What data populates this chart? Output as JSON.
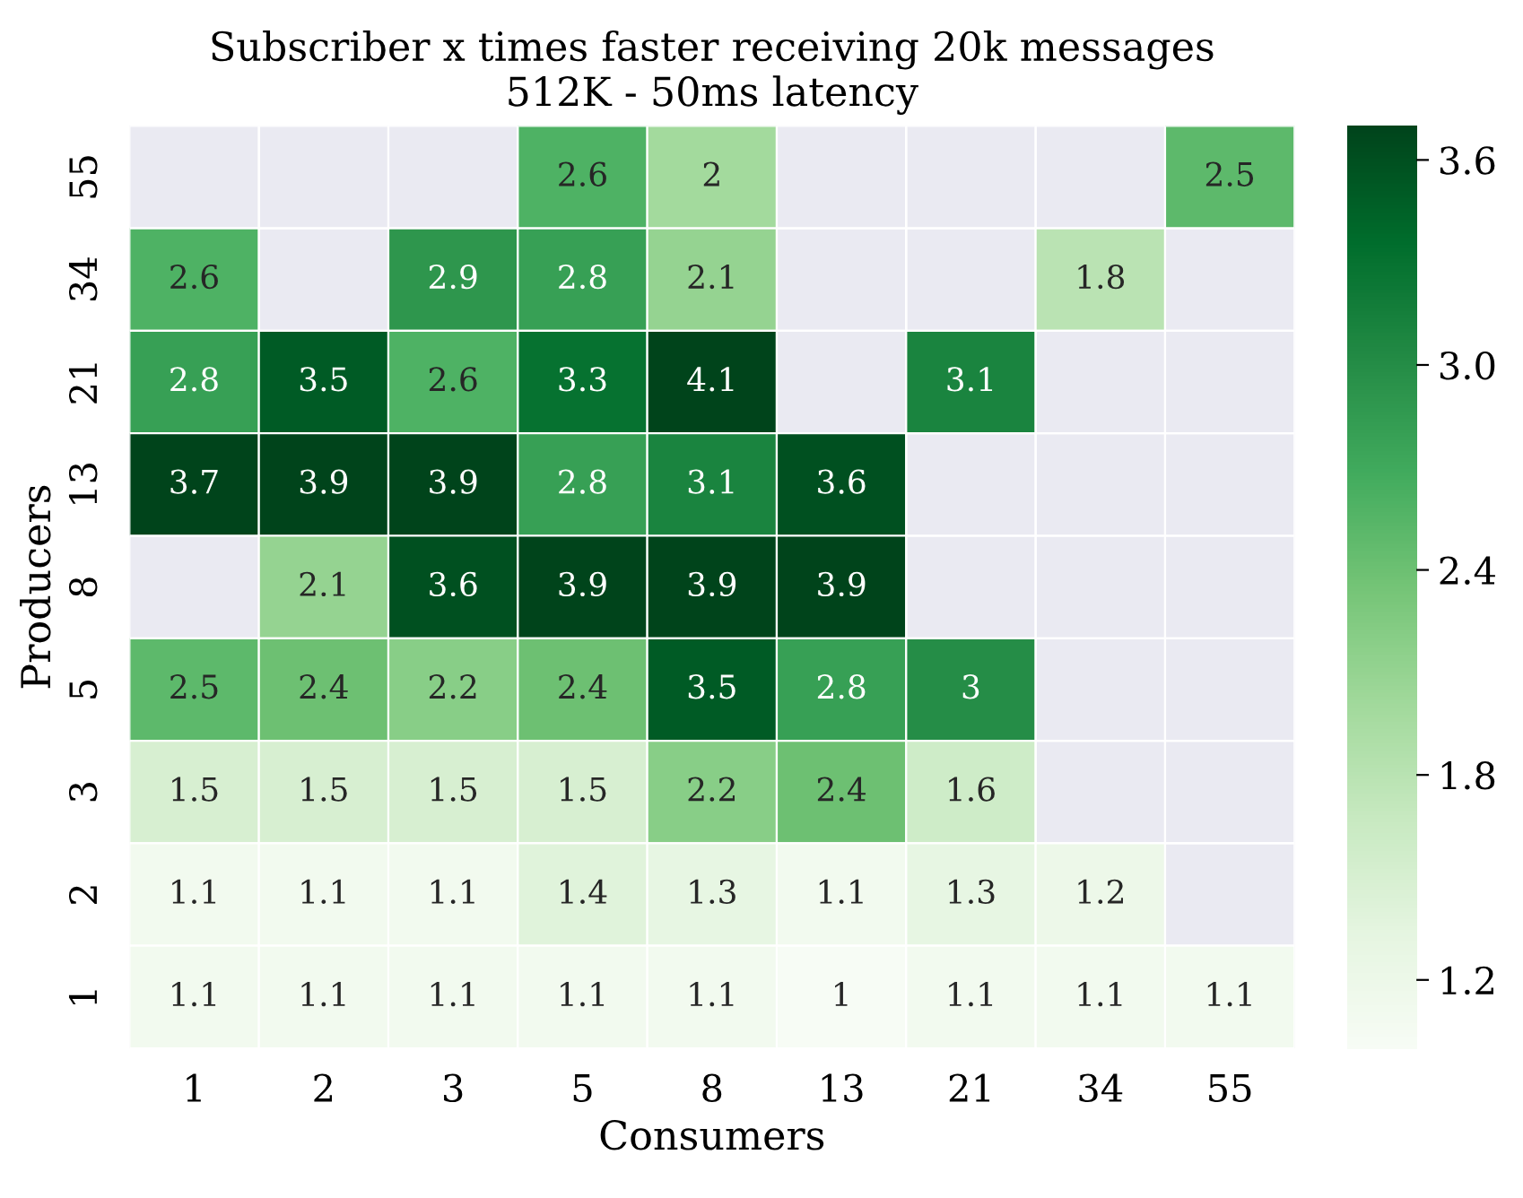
{
  "chart_data": {
    "type": "heatmap",
    "title": "Subscriber x times faster receiving 20k messages",
    "subtitle": "512K - 50ms latency",
    "xlabel": "Consumers",
    "ylabel": "Producers",
    "categories": [
      "1",
      "2",
      "3",
      "5",
      "8",
      "13",
      "21",
      "34",
      "55"
    ],
    "y_categories": [
      "55",
      "34",
      "21",
      "13",
      "8",
      "5",
      "3",
      "2",
      "1"
    ],
    "cells": [
      [
        null,
        null,
        null,
        2.6,
        2,
        null,
        null,
        null,
        2.5
      ],
      [
        2.6,
        null,
        2.9,
        2.8,
        2.1,
        null,
        null,
        1.8,
        null
      ],
      [
        2.8,
        3.5,
        2.6,
        3.3,
        4.1,
        null,
        3.1,
        null,
        null
      ],
      [
        3.7,
        3.9,
        3.9,
        2.8,
        3.1,
        3.6,
        null,
        null,
        null
      ],
      [
        null,
        2.1,
        3.6,
        3.9,
        3.9,
        3.9,
        null,
        null,
        null
      ],
      [
        2.5,
        2.4,
        2.2,
        2.4,
        3.5,
        2.8,
        3,
        null,
        null
      ],
      [
        1.5,
        1.5,
        1.5,
        1.5,
        2.2,
        2.4,
        1.6,
        null,
        null
      ],
      [
        1.1,
        1.1,
        1.1,
        1.4,
        1.3,
        1.1,
        1.3,
        1.2,
        null
      ],
      [
        1.1,
        1.1,
        1.1,
        1.1,
        1.1,
        1,
        1.1,
        1.1,
        1.1
      ]
    ],
    "clim": [
      1.0,
      3.7
    ],
    "cticks": [
      1.2,
      1.8,
      2.4,
      {
        "value": 3,
        "label": "3.0"
      },
      3.6
    ],
    "data_labels": true
  }
}
